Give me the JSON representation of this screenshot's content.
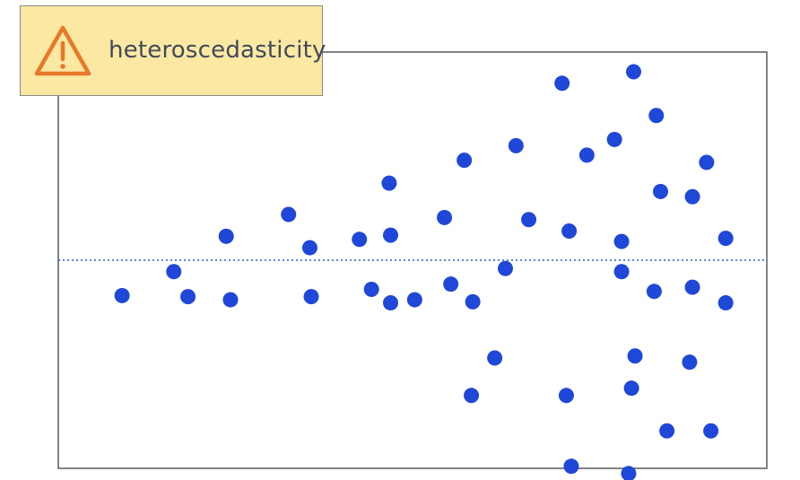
{
  "badge": {
    "label": "heteroscedasticity",
    "icon": "warning-triangle-icon",
    "background": "#fbe8a3",
    "icon_color": "#e8782a"
  },
  "chart_data": {
    "type": "scatter",
    "title": "",
    "xlabel": "",
    "ylabel": "",
    "xlim": [
      0,
      100
    ],
    "ylim": [
      -100,
      100
    ],
    "grid": false,
    "reference_line": {
      "y": 0,
      "style": "dotted",
      "color": "#2a57d6"
    },
    "point_color": "#1f47d8",
    "points": [
      {
        "x": 9,
        "y": -17
      },
      {
        "x": 16.3,
        "y": -5.5
      },
      {
        "x": 18.3,
        "y": -17.5
      },
      {
        "x": 23.7,
        "y": 11.5
      },
      {
        "x": 24.3,
        "y": -19
      },
      {
        "x": 32.5,
        "y": 22
      },
      {
        "x": 35.5,
        "y": 6
      },
      {
        "x": 35.7,
        "y": -17.5
      },
      {
        "x": 42.5,
        "y": 10
      },
      {
        "x": 44.2,
        "y": -14
      },
      {
        "x": 46.7,
        "y": 37
      },
      {
        "x": 46.9,
        "y": 12
      },
      {
        "x": 46.9,
        "y": -20.5
      },
      {
        "x": 50.3,
        "y": -19
      },
      {
        "x": 54.5,
        "y": 20.5
      },
      {
        "x": 55.4,
        "y": -11.5
      },
      {
        "x": 57.3,
        "y": 48
      },
      {
        "x": 58.3,
        "y": -65
      },
      {
        "x": 58.5,
        "y": -20
      },
      {
        "x": 61.6,
        "y": -47
      },
      {
        "x": 63.1,
        "y": -4
      },
      {
        "x": 64.6,
        "y": 55
      },
      {
        "x": 66.4,
        "y": 19.5
      },
      {
        "x": 71.1,
        "y": 85
      },
      {
        "x": 72.1,
        "y": 14
      },
      {
        "x": 71.7,
        "y": -65
      },
      {
        "x": 72.4,
        "y": -99
      },
      {
        "x": 74.6,
        "y": 50.5
      },
      {
        "x": 78.5,
        "y": 58
      },
      {
        "x": 79.5,
        "y": 9
      },
      {
        "x": 79.5,
        "y": -5.5
      },
      {
        "x": 81.2,
        "y": 90.5
      },
      {
        "x": 81.4,
        "y": -46
      },
      {
        "x": 80.9,
        "y": -61.5
      },
      {
        "x": 80.5,
        "y": -102.5
      },
      {
        "x": 84.4,
        "y": 69.5
      },
      {
        "x": 85,
        "y": 33
      },
      {
        "x": 84.1,
        "y": -15
      },
      {
        "x": 85.9,
        "y": -82
      },
      {
        "x": 89.5,
        "y": 30.5
      },
      {
        "x": 89.5,
        "y": -13
      },
      {
        "x": 89.1,
        "y": -49
      },
      {
        "x": 91.5,
        "y": 47
      },
      {
        "x": 92.1,
        "y": -82
      },
      {
        "x": 94.2,
        "y": 10.5
      },
      {
        "x": 94.2,
        "y": -20.5
      }
    ]
  }
}
